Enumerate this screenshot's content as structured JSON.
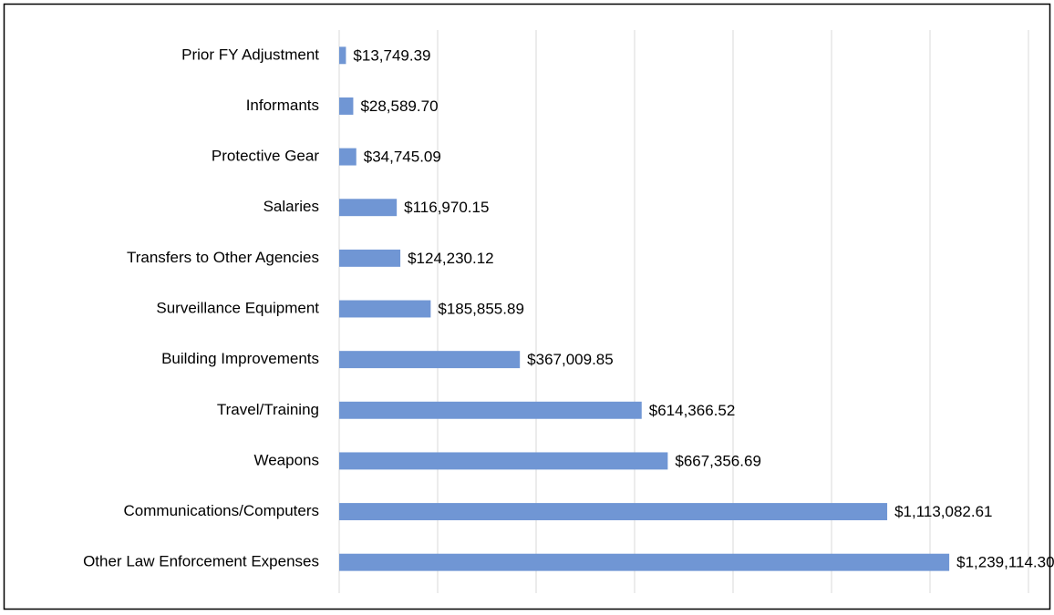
{
  "chart_data": {
    "type": "bar",
    "orientation": "horizontal",
    "categories": [
      "Prior FY Adjustment",
      "Informants",
      "Protective Gear",
      "Salaries",
      "Transfers to Other Agencies",
      "Surveillance Equipment",
      "Building Improvements",
      "Travel/Training",
      "Weapons",
      "Communications/Computers",
      "Other Law Enforcement Expenses"
    ],
    "values": [
      13749.39,
      28589.7,
      34745.09,
      116970.15,
      124230.12,
      185855.89,
      367009.85,
      614366.52,
      667356.69,
      1113082.61,
      1239114.3
    ],
    "value_labels": [
      "$13,749.39",
      "$28,589.70",
      "$34,745.09",
      "$116,970.15",
      "$124,230.12",
      "$185,855.89",
      "$367,009.85",
      "$614,366.52",
      "$667,356.69",
      "$1,113,082.61",
      "$1,239,114.30"
    ],
    "color": "#7096d4",
    "xlim": [
      0,
      1400000
    ],
    "xticks": [
      0,
      200000,
      400000,
      600000,
      800000,
      1000000,
      1200000,
      1400000
    ],
    "grid": true
  }
}
